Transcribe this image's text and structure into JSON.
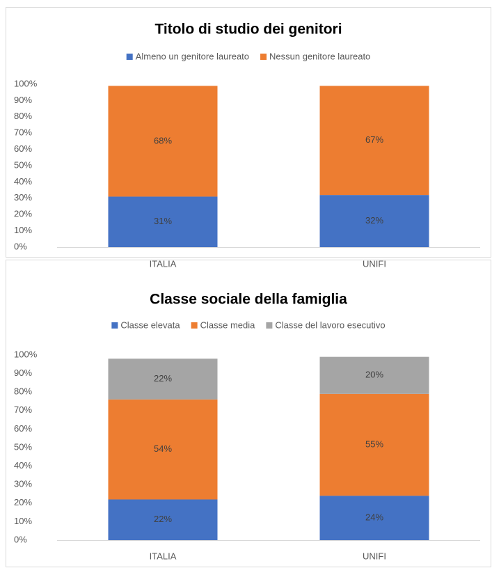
{
  "chart_data": [
    {
      "type": "bar",
      "stacked": true,
      "title": "Titolo di studio dei genitori",
      "categories": [
        "ITALIA",
        "UNIFI"
      ],
      "series": [
        {
          "name": "Almeno un genitore laureato",
          "color": "#4472c4",
          "values": [
            31,
            32
          ],
          "value_labels": [
            "31%",
            "32%"
          ]
        },
        {
          "name": "Nessun genitore laureato",
          "color": "#ed7d31",
          "values": [
            68,
            67
          ],
          "value_labels": [
            "68%",
            "67%"
          ]
        }
      ],
      "ylim": [
        0,
        100
      ],
      "yticks": [
        {
          "value": 0,
          "label": "0%"
        },
        {
          "value": 10,
          "label": "10%"
        },
        {
          "value": 20,
          "label": "20%"
        },
        {
          "value": 30,
          "label": "30%"
        },
        {
          "value": 40,
          "label": "40%"
        },
        {
          "value": 50,
          "label": "50%"
        },
        {
          "value": 60,
          "label": "60%"
        },
        {
          "value": 70,
          "label": "70%"
        },
        {
          "value": 80,
          "label": "80%"
        },
        {
          "value": 90,
          "label": "90%"
        },
        {
          "value": 100,
          "label": "100%"
        }
      ],
      "legend": "top",
      "grid": false
    },
    {
      "type": "bar",
      "stacked": true,
      "title": "Classe sociale della famiglia",
      "categories": [
        "ITALIA",
        "UNIFI"
      ],
      "series": [
        {
          "name": "Classe elevata",
          "color": "#4472c4",
          "values": [
            22,
            24
          ],
          "value_labels": [
            "22%",
            "24%"
          ]
        },
        {
          "name": "Classe media",
          "color": "#ed7d31",
          "values": [
            54,
            55
          ],
          "value_labels": [
            "54%",
            "55%"
          ]
        },
        {
          "name": "Classe del lavoro esecutivo",
          "color": "#a5a5a5",
          "values": [
            22,
            20
          ],
          "value_labels": [
            "22%",
            "20%"
          ]
        }
      ],
      "ylim": [
        0,
        100
      ],
      "yticks": [
        {
          "value": 0,
          "label": "0%"
        },
        {
          "value": 10,
          "label": "10%"
        },
        {
          "value": 20,
          "label": "20%"
        },
        {
          "value": 30,
          "label": "30%"
        },
        {
          "value": 40,
          "label": "40%"
        },
        {
          "value": 50,
          "label": "50%"
        },
        {
          "value": 60,
          "label": "60%"
        },
        {
          "value": 70,
          "label": "70%"
        },
        {
          "value": 80,
          "label": "80%"
        },
        {
          "value": 90,
          "label": "90%"
        },
        {
          "value": 100,
          "label": "100%"
        }
      ],
      "legend": "top",
      "grid": false
    }
  ]
}
